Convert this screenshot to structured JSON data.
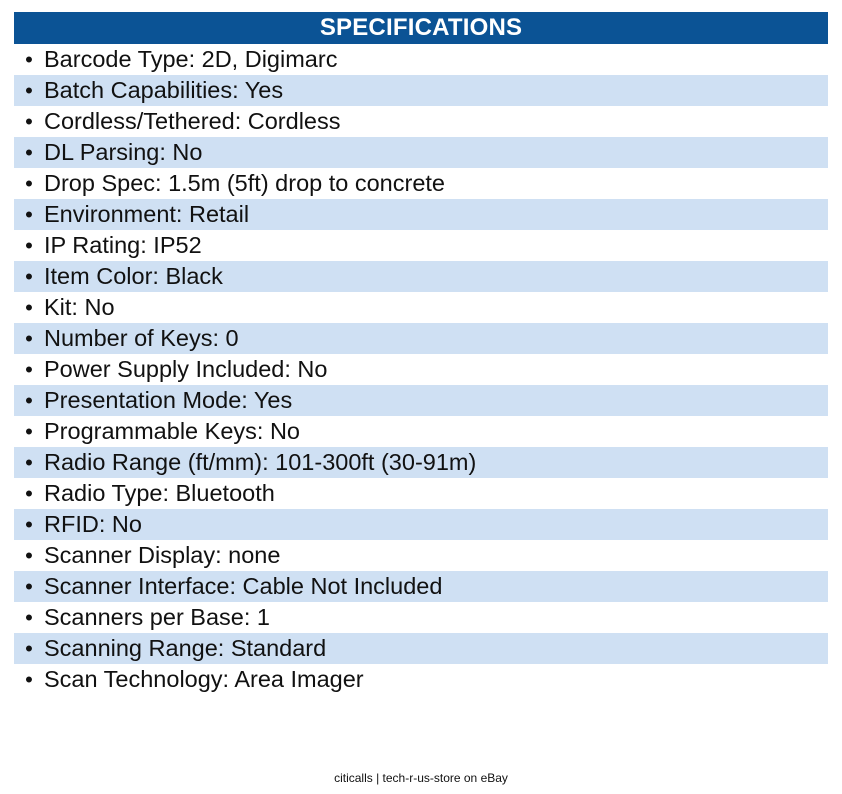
{
  "colors": {
    "header_bg": "#0b5395",
    "header_text": "#ffffff",
    "row_alt": "#cfe0f3",
    "row_plain": "#ffffff"
  },
  "header": {
    "title": "SPECIFICATIONS"
  },
  "bullet_char": "•",
  "specs": [
    "Barcode Type: 2D, Digimarc",
    "Batch Capabilities: Yes",
    "Cordless/Tethered: Cordless",
    "DL Parsing: No",
    "Drop Spec: 1.5m (5ft) drop to concrete",
    "Environment: Retail",
    "IP Rating: IP52",
    "Item Color: Black",
    "Kit: No",
    "Number of Keys: 0",
    "Power Supply Included: No",
    "Presentation Mode: Yes",
    "Programmable Keys: No",
    "Radio Range (ft/mm): 101-300ft (30-91m)",
    "Radio Type: Bluetooth",
    "RFID: No",
    "Scanner Display: none",
    "Scanner Interface: Cable Not Included",
    "Scanners per Base: 1",
    "Scanning Range: Standard",
    "Scan Technology: Area Imager"
  ],
  "footer": {
    "text": "citicalls | tech-r-us-store on eBay"
  }
}
